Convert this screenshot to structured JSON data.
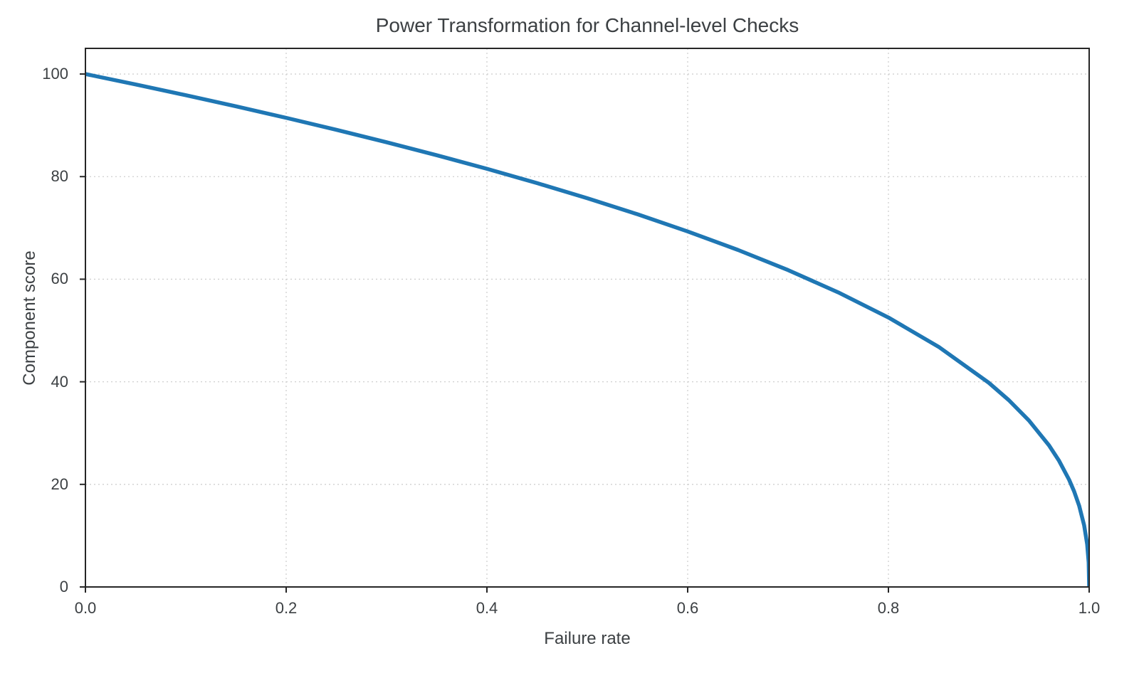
{
  "figure": {
    "background": "#ffffff"
  },
  "chart_data": {
    "type": "line",
    "title": "Power Transformation for Channel-level Checks",
    "xlabel": "Failure rate",
    "ylabel": "Component score",
    "xlim": [
      0.0,
      1.0
    ],
    "ylim": [
      0,
      105
    ],
    "x_ticks": [
      0.0,
      0.2,
      0.4,
      0.6,
      0.8,
      1.0
    ],
    "x_tick_labels": [
      "0.0",
      "0.2",
      "0.4",
      "0.6",
      "0.8",
      "1.0"
    ],
    "y_ticks": [
      0,
      20,
      40,
      60,
      80,
      100
    ],
    "y_tick_labels": [
      "0",
      "20",
      "40",
      "60",
      "80",
      "100"
    ],
    "grid": true,
    "grid_line_style": "dashed",
    "grid_color": "#cfcfcf",
    "spine_color": "#262626",
    "text_color": "#3c4043",
    "line_color": "#1f77b4",
    "line_width": 5.5,
    "legend_position": "none",
    "series": [
      {
        "name": "Component score vs Failure rate",
        "points": [
          [
            0.0,
            100.0
          ],
          [
            0.05,
            97.97
          ],
          [
            0.1,
            95.87
          ],
          [
            0.15,
            93.71
          ],
          [
            0.2,
            91.46
          ],
          [
            0.25,
            89.13
          ],
          [
            0.3,
            86.7
          ],
          [
            0.35,
            84.17
          ],
          [
            0.4,
            81.52
          ],
          [
            0.45,
            78.73
          ],
          [
            0.5,
            75.79
          ],
          [
            0.55,
            72.66
          ],
          [
            0.6,
            69.31
          ],
          [
            0.65,
            65.71
          ],
          [
            0.7,
            61.78
          ],
          [
            0.75,
            57.43
          ],
          [
            0.8,
            52.53
          ],
          [
            0.85,
            46.82
          ],
          [
            0.9,
            39.81
          ],
          [
            0.92,
            36.41
          ],
          [
            0.94,
            32.45
          ],
          [
            0.96,
            27.6
          ],
          [
            0.97,
            24.6
          ],
          [
            0.98,
            20.91
          ],
          [
            0.985,
            18.64
          ],
          [
            0.99,
            15.85
          ],
          [
            0.995,
            12.01
          ],
          [
            0.998,
            8.33
          ],
          [
            0.9995,
            4.78
          ],
          [
            1.0,
            0.0
          ]
        ]
      }
    ]
  }
}
